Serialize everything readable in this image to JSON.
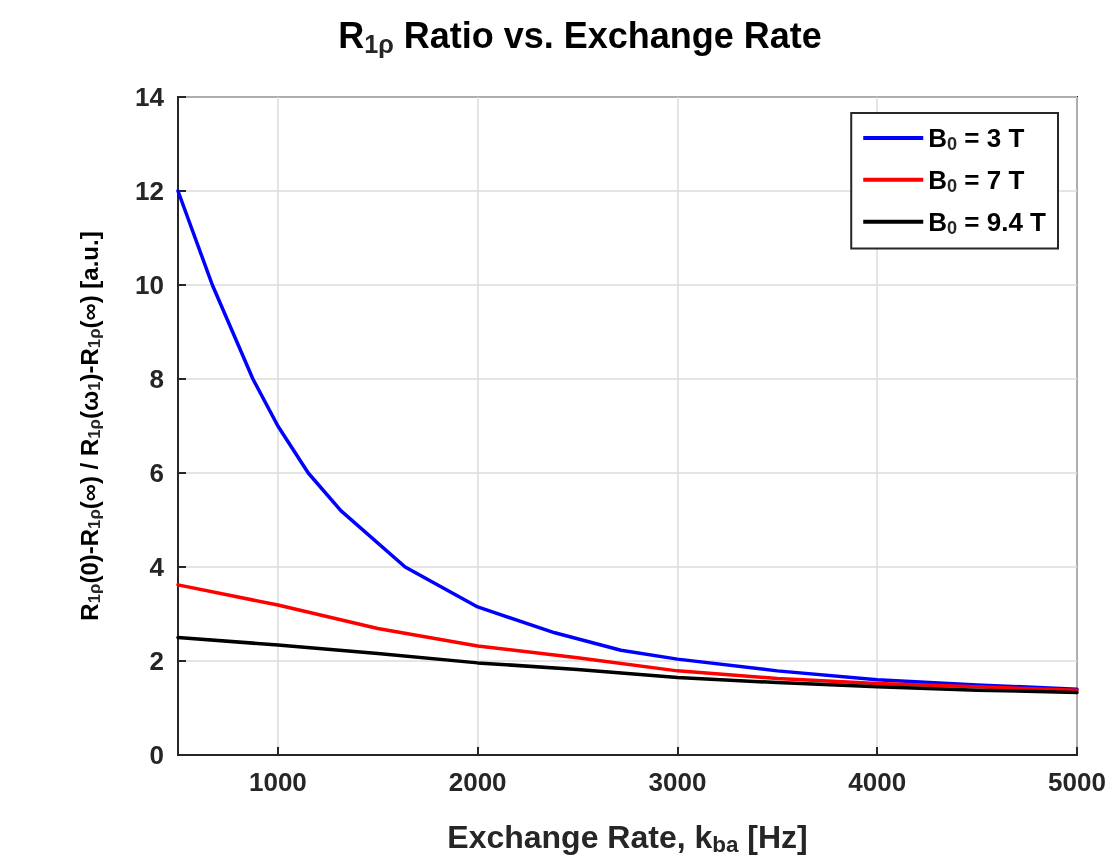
{
  "chart_data": {
    "type": "line",
    "title": "R$_{1ρ}$ Ratio vs. Exchange Rate",
    "xlabel": "Exchange Rate, k$_{ba}$ [Hz]",
    "ylabel": "R$_{1ρ}$(0)-R$_{1ρ}$(∞) / R$_{1ρ}$(ω$_{1}$)-R$_{1ρ}$(∞) [a.u.]",
    "xlim": [
      500,
      5000
    ],
    "xticks": [
      1000,
      2000,
      3000,
      4000,
      5000
    ],
    "ylim": [
      0,
      14
    ],
    "yticks": [
      0,
      2,
      4,
      6,
      8,
      10,
      12,
      14
    ],
    "grid": true,
    "legend": "top right",
    "marker": "none",
    "line_style": "solid",
    "series": [
      {
        "name": "B$_{0}$ = 3 T",
        "color": "#0000ff",
        "x": [
          500,
          672,
          875,
          1000,
          1152,
          1315,
          1637,
          2000,
          2386,
          2717,
          3000,
          3500,
          4000,
          4500,
          5000
        ],
        "values": [
          12,
          10,
          8,
          7.0,
          6.0,
          5.2,
          4.0,
          3.15,
          2.6,
          2.23,
          2.04,
          1.79,
          1.6,
          1.49,
          1.4
        ]
      },
      {
        "name": "B$_{0}$ = 7 T",
        "color": "#ff0000",
        "x": [
          500,
          1000,
          1500,
          2000,
          2500,
          3000,
          3500,
          4000,
          4500,
          5000
        ],
        "values": [
          3.62,
          3.19,
          2.69,
          2.32,
          2.07,
          1.79,
          1.63,
          1.52,
          1.45,
          1.38
        ]
      },
      {
        "name": "B$_{0}$ = 9.4 T",
        "color": "#000000",
        "x": [
          500,
          1000,
          1500,
          2000,
          2500,
          3000,
          3500,
          4000,
          4500,
          5000
        ],
        "values": [
          2.5,
          2.34,
          2.16,
          1.96,
          1.82,
          1.65,
          1.54,
          1.45,
          1.38,
          1.33
        ]
      }
    ]
  }
}
